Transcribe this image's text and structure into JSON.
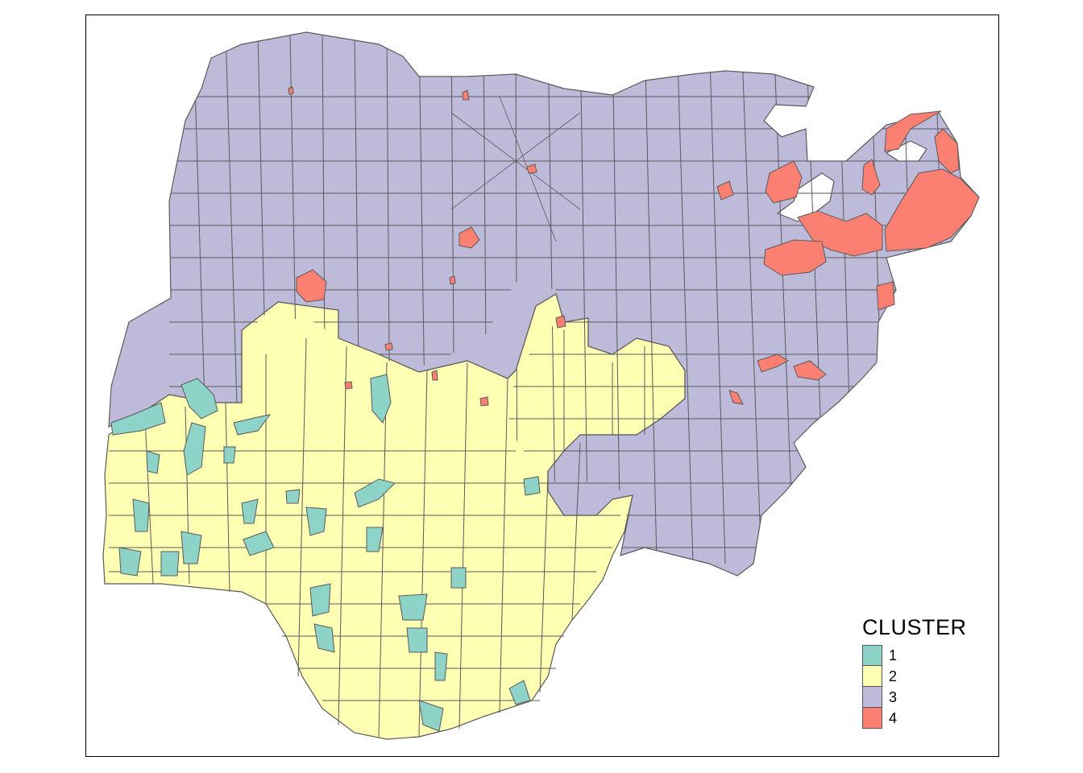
{
  "legend": {
    "title": "CLUSTER",
    "items": [
      {
        "label": "1",
        "color": "#8DD3C7"
      },
      {
        "label": "2",
        "color": "#FFFFB3"
      },
      {
        "label": "3",
        "color": "#BEBADA"
      },
      {
        "label": "4",
        "color": "#FB8072"
      }
    ]
  },
  "border_color": "#5a5a5a"
}
